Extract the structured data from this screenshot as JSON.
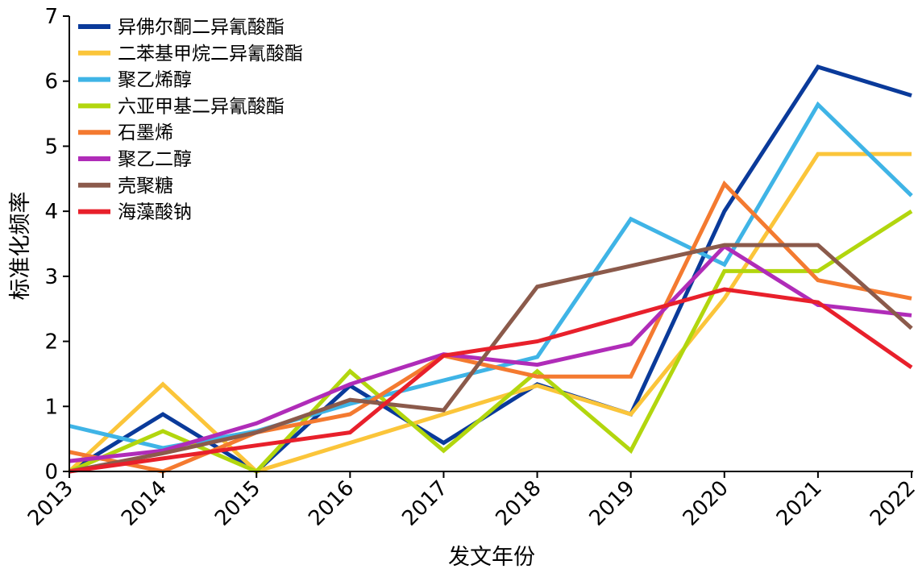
{
  "chart_data": {
    "type": "line",
    "title": "",
    "xlabel": "发文年份",
    "ylabel": "标准化频率",
    "categories": [
      "2013",
      "2014",
      "2015",
      "2016",
      "2017",
      "2018",
      "2019",
      "2020",
      "2021",
      "2022"
    ],
    "y_ticks": [
      "0",
      "1",
      "2",
      "3",
      "4",
      "5",
      "6",
      "7"
    ],
    "ylim": [
      0,
      7
    ],
    "legend_position": "top-left",
    "series": [
      {
        "name": "异佛尔酮二异氰酸酯",
        "color": "#0a3a9a",
        "values": [
          0.0,
          0.88,
          0.0,
          1.32,
          0.44,
          1.34,
          0.88,
          4.0,
          6.22,
          5.78
        ]
      },
      {
        "name": "二苯基甲烷二异氰酸酯",
        "color": "#fbc53a",
        "values": [
          0.0,
          1.34,
          0.0,
          0.44,
          0.88,
          1.32,
          0.88,
          2.66,
          4.88,
          4.88
        ]
      },
      {
        "name": "聚乙烯醇",
        "color": "#3fb4e6",
        "values": [
          0.7,
          0.36,
          0.62,
          1.04,
          1.4,
          1.76,
          3.88,
          3.18,
          5.64,
          4.24
        ]
      },
      {
        "name": "六亚甲基二异氰酸酯",
        "color": "#b2d60e",
        "values": [
          0.0,
          0.62,
          0.0,
          1.54,
          0.32,
          1.54,
          0.32,
          3.08,
          3.08,
          4.0
        ]
      },
      {
        "name": "石墨烯",
        "color": "#f47a30",
        "values": [
          0.3,
          0.0,
          0.6,
          0.88,
          1.78,
          1.46,
          1.46,
          4.42,
          2.94,
          2.66
        ]
      },
      {
        "name": "聚乙二醇",
        "color": "#b02cb8",
        "values": [
          0.16,
          0.32,
          0.74,
          1.34,
          1.8,
          1.64,
          1.96,
          3.46,
          2.56,
          2.4
        ]
      },
      {
        "name": "壳聚糖",
        "color": "#8b5a4b",
        "values": [
          0.0,
          0.28,
          0.6,
          1.1,
          0.94,
          2.84,
          3.16,
          3.48,
          3.48,
          2.2
        ]
      },
      {
        "name": "海藻酸钠",
        "color": "#e8202b",
        "values": [
          0.0,
          0.2,
          0.4,
          0.6,
          1.78,
          2.0,
          2.4,
          2.8,
          2.6,
          1.6
        ]
      }
    ]
  }
}
